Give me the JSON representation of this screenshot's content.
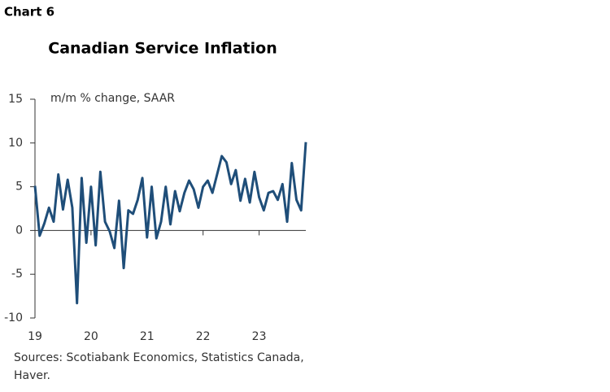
{
  "chart_data": {
    "type": "line",
    "label": "Chart 6",
    "title": "Canadian Service Inflation",
    "y_label": "m/m % change, SAAR",
    "source": [
      "Sources: Scotiabank Economics, Statistics Canada,",
      "Haver."
    ],
    "x": [
      0,
      1,
      2,
      3,
      4,
      5,
      6,
      7,
      8,
      9,
      10,
      11,
      12,
      13,
      14,
      15,
      16,
      17,
      18,
      19,
      20,
      21,
      22,
      23,
      24,
      25,
      26,
      27,
      28,
      29,
      30,
      31,
      32,
      33,
      34,
      35,
      36,
      37,
      38,
      39,
      40,
      41,
      42,
      43,
      44,
      45,
      46,
      47,
      48,
      49,
      50,
      51,
      52,
      53,
      54,
      55,
      56,
      57,
      58
    ],
    "series": [
      {
        "name": "Service inflation",
        "color": "#1f4e79",
        "values": [
          5.1,
          -0.6,
          0.8,
          2.6,
          1.0,
          6.4,
          2.4,
          5.8,
          2.6,
          -8.3,
          6.0,
          -1.4,
          5.0,
          -1.7,
          6.7,
          1.0,
          -0.1,
          -2.0,
          3.4,
          -4.3,
          2.3,
          1.9,
          3.5,
          6.0,
          -0.8,
          5.0,
          -0.9,
          1.0,
          5.0,
          0.7,
          4.5,
          2.2,
          4.3,
          5.7,
          4.7,
          2.6,
          5.0,
          5.7,
          4.3,
          6.4,
          8.5,
          7.8,
          5.3,
          6.9,
          3.4,
          5.9,
          3.2,
          6.7,
          3.8,
          2.3,
          4.3,
          4.5,
          3.5,
          5.3,
          1.0,
          7.7,
          3.5,
          2.3,
          10.1
        ]
      }
    ],
    "xlim": [
      0,
      58
    ],
    "xticks": [
      {
        "value": 0,
        "label": "19"
      },
      {
        "value": 12,
        "label": "20"
      },
      {
        "value": 24,
        "label": "21"
      },
      {
        "value": 36,
        "label": "22"
      },
      {
        "value": 48,
        "label": "23"
      }
    ],
    "ylim": [
      -10,
      15
    ],
    "yticks": [
      -10,
      -5,
      0,
      5,
      10,
      15
    ],
    "grid": false
  }
}
